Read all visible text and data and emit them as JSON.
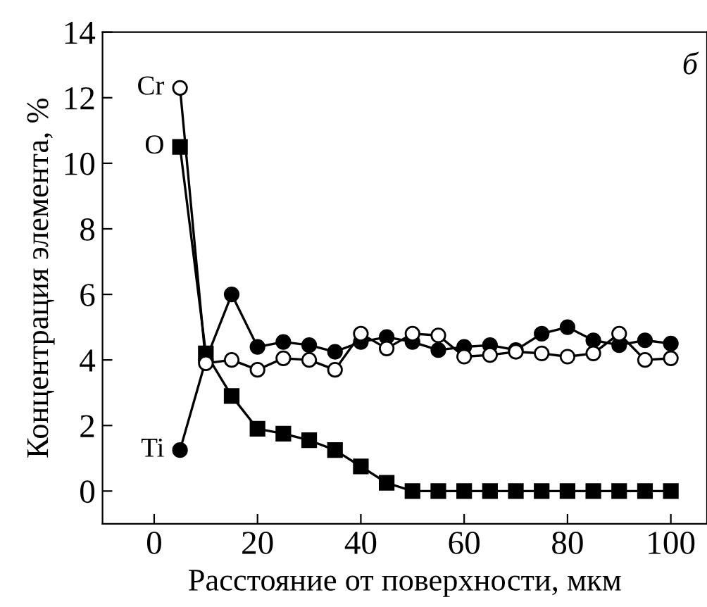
{
  "chart_data": {
    "type": "line",
    "xlabel": "Расстояние от поверхности, мкм",
    "ylabel": "Концентрация элемента, %",
    "annotations": [
      "б"
    ],
    "x": [
      5,
      10,
      15,
      20,
      25,
      30,
      35,
      40,
      45,
      50,
      55,
      60,
      65,
      70,
      75,
      80,
      85,
      90,
      95,
      100
    ],
    "series": [
      {
        "name": "Cr",
        "color": "#ffffff",
        "marker": "circle",
        "values": [
          12.3,
          3.9,
          4.0,
          3.7,
          4.05,
          4.0,
          3.7,
          4.8,
          4.35,
          4.8,
          4.75,
          4.1,
          4.15,
          4.25,
          4.2,
          4.1,
          4.2,
          4.8,
          4.0,
          4.05
        ]
      },
      {
        "name": "O",
        "color": "#000000",
        "marker": "square",
        "values": [
          10.5,
          4.2,
          2.9,
          1.9,
          1.75,
          1.55,
          1.25,
          0.75,
          0.25,
          0,
          0,
          0,
          0,
          0,
          0,
          0,
          0,
          0,
          0,
          0
        ]
      },
      {
        "name": "Ti",
        "color": "#000000",
        "marker": "circle",
        "values": [
          1.25,
          4.0,
          6.0,
          4.4,
          4.55,
          4.45,
          4.25,
          4.55,
          4.7,
          4.55,
          4.3,
          4.4,
          4.45,
          4.3,
          4.8,
          5.0,
          4.6,
          4.45,
          4.6,
          4.5
        ]
      }
    ],
    "xlim": [
      -10,
      107
    ],
    "ylim": [
      -1,
      14
    ],
    "xticks": [
      0,
      20,
      40,
      60,
      80,
      100
    ],
    "yticks": [
      0,
      2,
      4,
      6,
      8,
      10,
      12,
      14
    ],
    "grid": false,
    "legend": false,
    "line_style": "solid"
  }
}
